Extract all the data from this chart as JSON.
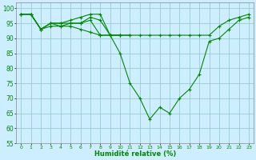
{
  "title": "",
  "xlabel": "Humidité relative (%)",
  "ylabel": "",
  "bg_color": "#cceeff",
  "grid_color": "#99cccc",
  "line_color": "#008800",
  "marker_color": "#008800",
  "xlim": [
    -0.5,
    23.5
  ],
  "ylim": [
    55,
    102
  ],
  "yticks": [
    55,
    60,
    65,
    70,
    75,
    80,
    85,
    90,
    95,
    100
  ],
  "xticks": [
    0,
    1,
    2,
    3,
    4,
    5,
    6,
    7,
    8,
    9,
    10,
    11,
    12,
    13,
    14,
    15,
    16,
    17,
    18,
    19,
    20,
    21,
    22,
    23
  ],
  "series": [
    [
      98,
      98,
      93,
      95,
      95,
      96,
      97,
      98,
      98,
      91,
      91,
      91,
      91,
      91,
      91,
      91,
      91,
      91,
      91,
      91,
      94,
      96,
      97,
      98
    ],
    [
      98,
      98,
      93,
      95,
      95,
      95,
      95,
      97,
      96,
      91,
      91,
      91,
      null,
      null,
      null,
      null,
      null,
      null,
      null,
      null,
      null,
      null,
      null,
      null
    ],
    [
      98,
      98,
      93,
      95,
      94,
      95,
      95,
      96,
      91,
      91,
      91,
      null,
      null,
      null,
      null,
      null,
      null,
      null,
      null,
      null,
      null,
      null,
      null,
      null
    ],
    [
      98,
      98,
      93,
      94,
      94,
      94,
      93,
      92,
      91,
      91,
      85,
      75,
      70,
      63,
      67,
      65,
      70,
      73,
      78,
      89,
      90,
      93,
      96,
      97
    ]
  ]
}
